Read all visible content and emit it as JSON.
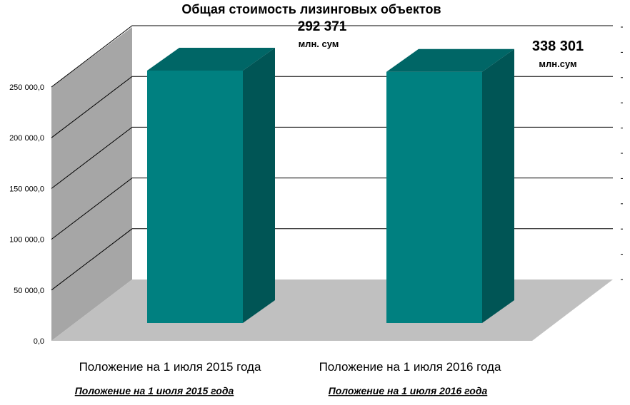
{
  "chart_data": {
    "type": "bar",
    "title": "Общая стоимость лизинговых объектов",
    "categories": [
      "Положение на 1 июля 2015 года",
      "Положение на 1 июля 2016 года"
    ],
    "category_sublabels": [
      "Положение на 1 июля 2015 года",
      "Положение на 1 июля 2016 года"
    ],
    "values": [
      292371,
      338301
    ],
    "value_labels": [
      "292 371",
      "338 301"
    ],
    "value_units": [
      "млн. сум",
      "млн.сум"
    ],
    "y_ticks": [
      "0,0",
      "50 000,0",
      "100 000,0",
      "150 000,0",
      "200 000,0",
      "250 000,0"
    ],
    "ylim": [
      0,
      250000
    ],
    "grid": true,
    "three_d": true,
    "colors": {
      "bar_front": "#008080",
      "bar_top": "#006666",
      "bar_side": "#005555",
      "wall": "#a6a6a6",
      "floor": "#c0c0c0",
      "gridline": "#000000"
    }
  }
}
